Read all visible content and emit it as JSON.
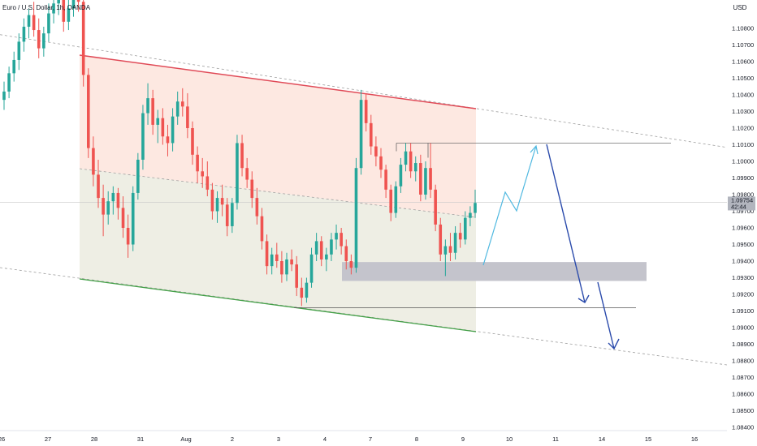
{
  "header": {
    "title": "Euro / U.S. Dollar, 1h, OANDA",
    "currency": "USD"
  },
  "colors": {
    "bull": "#26a69a",
    "bear": "#ef5350",
    "channel_top": "#e04a57",
    "channel_bottom": "#43a047",
    "upper_zone": "#fde8e1",
    "lower_zone": "#eeeee4",
    "support_zone": "#c4c4cc",
    "projection_up": "#4fb8e0",
    "projection_down": "#2a4aab"
  },
  "chart_data": {
    "type": "candlestick",
    "title": "Euro / U.S. Dollar, 1h, OANDA",
    "price_axis": {
      "unit": "USD",
      "ticks": [
        1.108,
        1.107,
        1.106,
        1.105,
        1.104,
        1.103,
        1.102,
        1.101,
        1.1,
        1.099,
        1.098,
        1.097,
        1.096,
        1.095,
        1.094,
        1.093,
        1.092,
        1.091,
        1.09,
        1.089,
        1.088,
        1.087,
        1.086,
        1.085,
        1.084
      ],
      "range": [
        1.0835,
        1.111
      ]
    },
    "time_axis": {
      "labels": [
        "26",
        "27",
        "28",
        "31",
        "Aug",
        "2",
        "3",
        "4",
        "7",
        "8",
        "9",
        "10",
        "11",
        "14",
        "15",
        "16"
      ],
      "unit_per_day": 1
    },
    "current_price": {
      "value": "1.09754",
      "countdown": "42:44"
    },
    "ohlc": [
      [
        1.1037,
        1.1048,
        1.1031,
        1.1042
      ],
      [
        1.1042,
        1.1057,
        1.1038,
        1.1053
      ],
      [
        1.1053,
        1.1066,
        1.1048,
        1.1061
      ],
      [
        1.1061,
        1.1077,
        1.1055,
        1.1072
      ],
      [
        1.1072,
        1.1086,
        1.1066,
        1.1081
      ],
      [
        1.1081,
        1.1092,
        1.1074,
        1.1088
      ],
      [
        1.1088,
        1.1096,
        1.1075,
        1.1079
      ],
      [
        1.1079,
        1.1086,
        1.1062,
        1.1068
      ],
      [
        1.1068,
        1.1081,
        1.1063,
        1.1077
      ],
      [
        1.1077,
        1.1095,
        1.1072,
        1.1089
      ],
      [
        1.1089,
        1.1102,
        1.1083,
        1.1095
      ],
      [
        1.1095,
        1.1105,
        1.1088,
        1.1099
      ],
      [
        1.1099,
        1.1104,
        1.1078,
        1.1084
      ],
      [
        1.1084,
        1.1098,
        1.1079,
        1.1092
      ],
      [
        1.1092,
        1.1108,
        1.1087,
        1.1103
      ],
      [
        1.1103,
        1.1108,
        1.109,
        1.1096
      ],
      [
        1.1096,
        1.1098,
        1.1045,
        1.1052
      ],
      [
        1.1052,
        1.1056,
        1.1002,
        1.1008
      ],
      [
        1.1008,
        1.1015,
        1.0985,
        1.0992
      ],
      [
        1.0992,
        1.1001,
        1.0972,
        1.0978
      ],
      [
        1.0978,
        1.0986,
        1.0955,
        1.0968
      ],
      [
        1.0968,
        1.0982,
        1.0962,
        1.0976
      ],
      [
        1.0976,
        1.0985,
        1.0968,
        1.0981
      ],
      [
        1.0981,
        1.0984,
        1.0965,
        1.0972
      ],
      [
        1.0972,
        1.0979,
        1.0954,
        1.096
      ],
      [
        1.096,
        1.0968,
        1.0942,
        1.095
      ],
      [
        1.095,
        1.0985,
        1.0946,
        1.0981
      ],
      [
        1.0981,
        1.1005,
        1.0977,
        1.1001
      ],
      [
        1.1001,
        1.1034,
        1.0995,
        1.1029
      ],
      [
        1.1029,
        1.1047,
        1.1022,
        1.1038
      ],
      [
        1.1038,
        1.1043,
        1.1016,
        1.1022
      ],
      [
        1.1022,
        1.1031,
        1.1011,
        1.1026
      ],
      [
        1.1026,
        1.1032,
        1.101,
        1.1015
      ],
      [
        1.1015,
        1.1022,
        1.1003,
        1.1011
      ],
      [
        1.1011,
        1.1032,
        1.1006,
        1.1027
      ],
      [
        1.1027,
        1.1042,
        1.1022,
        1.1036
      ],
      [
        1.1036,
        1.1044,
        1.1027,
        1.1033
      ],
      [
        1.1033,
        1.1041,
        1.1014,
        1.102
      ],
      [
        1.102,
        1.1024,
        1.0998,
        1.1004
      ],
      [
        1.1004,
        1.1009,
        1.0987,
        1.0994
      ],
      [
        1.0994,
        1.1002,
        1.0984,
        1.0991
      ],
      [
        1.0991,
        1.1,
        1.0979,
        1.0983
      ],
      [
        1.0983,
        1.0987,
        1.0965,
        1.097
      ],
      [
        1.097,
        1.0982,
        1.0963,
        1.0978
      ],
      [
        1.0978,
        1.0986,
        1.0967,
        1.0974
      ],
      [
        1.0974,
        1.0978,
        1.0955,
        1.0961
      ],
      [
        1.0961,
        1.0978,
        1.0957,
        1.0975
      ],
      [
        1.0975,
        1.1016,
        1.0971,
        1.1011
      ],
      [
        1.1011,
        1.1016,
        1.0991,
        1.0996
      ],
      [
        1.0996,
        1.1002,
        1.0984,
        1.0989
      ],
      [
        1.0989,
        1.0994,
        1.0972,
        1.0978
      ],
      [
        1.0978,
        1.0984,
        1.0962,
        1.0967
      ],
      [
        1.0967,
        1.0972,
        1.0947,
        1.0952
      ],
      [
        1.0952,
        1.0956,
        1.0932,
        1.0937
      ],
      [
        1.0937,
        1.0948,
        1.0932,
        1.0944
      ],
      [
        1.0944,
        1.0951,
        1.0936,
        1.094
      ],
      [
        1.094,
        1.0946,
        1.0927,
        1.0932
      ],
      [
        1.0932,
        1.0945,
        1.0928,
        1.0941
      ],
      [
        1.0941,
        1.0947,
        1.0934,
        1.0938
      ],
      [
        1.0938,
        1.0943,
        1.0919,
        1.0924
      ],
      [
        1.0924,
        1.093,
        1.0913,
        1.0918
      ],
      [
        1.0918,
        1.093,
        1.0915,
        1.0927
      ],
      [
        1.0927,
        1.0948,
        1.0924,
        1.0944
      ],
      [
        1.0944,
        1.0957,
        1.094,
        1.0952
      ],
      [
        1.0952,
        1.0955,
        1.0937,
        1.0941
      ],
      [
        1.0941,
        1.0948,
        1.0934,
        1.0944
      ],
      [
        1.0944,
        1.0957,
        1.094,
        1.0953
      ],
      [
        1.0953,
        1.0962,
        1.0947,
        1.0957
      ],
      [
        1.0957,
        1.096,
        1.0944,
        1.0949
      ],
      [
        1.0949,
        1.0953,
        1.0935,
        1.094
      ],
      [
        1.094,
        1.0944,
        1.0932,
        1.0936
      ],
      [
        1.0936,
        1.1002,
        1.0933,
        1.0996
      ],
      [
        1.0996,
        1.1043,
        1.0992,
        1.1037
      ],
      [
        1.1037,
        1.1041,
        1.1018,
        1.1023
      ],
      [
        1.1023,
        1.1028,
        1.1004,
        1.1009
      ],
      [
        1.1009,
        1.1015,
        1.0997,
        1.1003
      ],
      [
        1.1003,
        1.1008,
        1.099,
        1.0995
      ],
      [
        1.0995,
        1.0998,
        1.0978,
        1.0983
      ],
      [
        1.0983,
        1.0986,
        1.0964,
        1.0969
      ],
      [
        1.0969,
        1.0988,
        1.0966,
        1.0985
      ],
      [
        1.0985,
        1.1002,
        1.0981,
        1.0998
      ],
      [
        1.0998,
        1.1011,
        1.0994,
        1.1006
      ],
      [
        1.1006,
        1.1011,
        1.099,
        1.0994
      ],
      [
        1.0994,
        1.1003,
        1.0988,
        1.0999
      ],
      [
        1.0999,
        1.1004,
        1.0976,
        1.098
      ],
      [
        1.098,
        1.1,
        1.0977,
        1.0996
      ],
      [
        1.0996,
        1.1011,
        1.0978,
        1.0983
      ],
      [
        1.0983,
        1.0986,
        1.0958,
        1.0962
      ],
      [
        1.0962,
        1.0966,
        1.094,
        1.0944
      ],
      [
        1.0944,
        1.0953,
        1.0931,
        1.0949
      ],
      [
        1.0949,
        1.0957,
        1.094,
        1.0945
      ],
      [
        1.0945,
        1.0961,
        1.0941,
        1.0957
      ],
      [
        1.0957,
        1.0963,
        1.0948,
        1.0953
      ],
      [
        1.0953,
        1.097,
        1.095,
        1.0966
      ],
      [
        1.0966,
        1.0973,
        1.0961,
        1.0969
      ],
      [
        1.0969,
        1.0983,
        1.0966,
        1.0975
      ]
    ],
    "annotations": {
      "descending_channel": "red resistance line and green support line, shaded zones",
      "support_zone": [
        1.0931,
        1.0937
      ],
      "resistance_ray": 1.1011,
      "support_ray": 1.0912,
      "projection": "cyan zig-zag up to the upper channel, then blue arrows down to the lower channel"
    }
  }
}
